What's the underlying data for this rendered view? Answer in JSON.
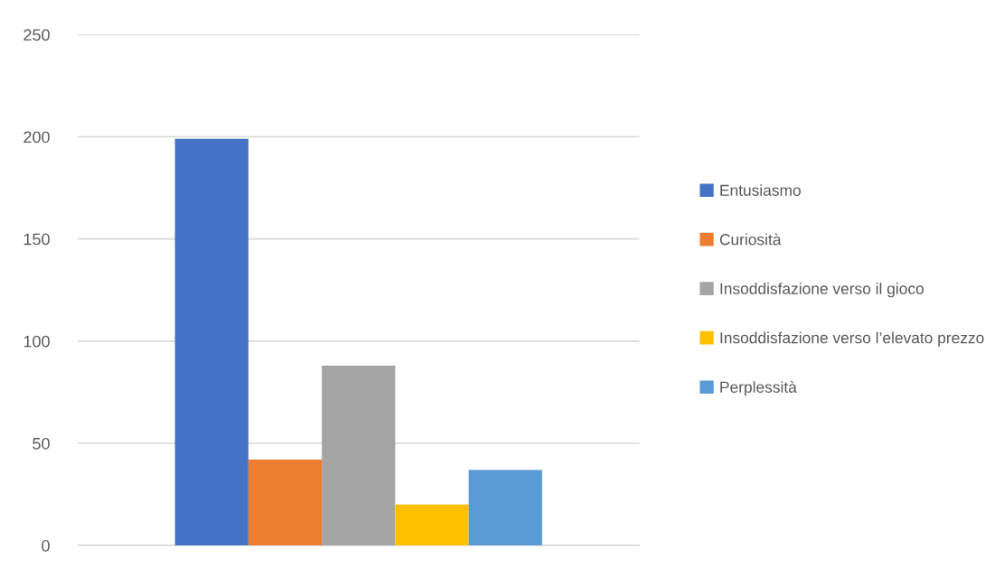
{
  "chart_data": {
    "type": "bar",
    "categories": [
      null
    ],
    "series": [
      {
        "name": "Entusiasmo",
        "color": "#4472c4",
        "values": [
          199
        ]
      },
      {
        "name": "Curiosità",
        "color": "#ed7d31",
        "values": [
          42
        ]
      },
      {
        "name": "Insoddisfazione verso il gioco",
        "color": "#a5a5a5",
        "values": [
          88
        ]
      },
      {
        "name": "Insoddisfazione verso l’elevato prezzo",
        "color": "#ffc000",
        "values": [
          20
        ]
      },
      {
        "name": "Perplessità",
        "color": "#5b9bd5",
        "values": [
          37
        ]
      }
    ],
    "ylim": [
      0,
      250
    ],
    "yticks": [
      0,
      50,
      100,
      150,
      200,
      250
    ],
    "grid": "y",
    "legend": "right"
  }
}
